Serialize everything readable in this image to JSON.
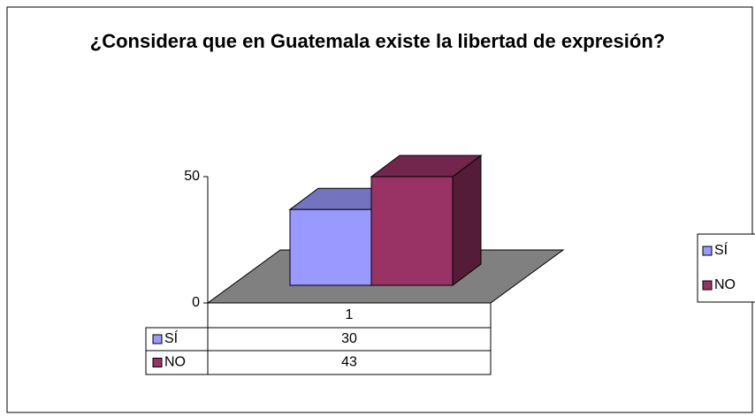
{
  "chart_data": {
    "type": "bar3d",
    "title": "¿Considera que en Guatemala existe la libertad de expresión?",
    "categories": [
      "1"
    ],
    "series": [
      {
        "name": "SÍ",
        "color": "#9999ff",
        "values": [
          30
        ]
      },
      {
        "name": "NO",
        "color": "#993366",
        "values": [
          43
        ]
      }
    ],
    "ylim": [
      0,
      50
    ],
    "yticks": [
      0,
      50
    ],
    "grid": false,
    "legend": "right",
    "data_table": true
  }
}
